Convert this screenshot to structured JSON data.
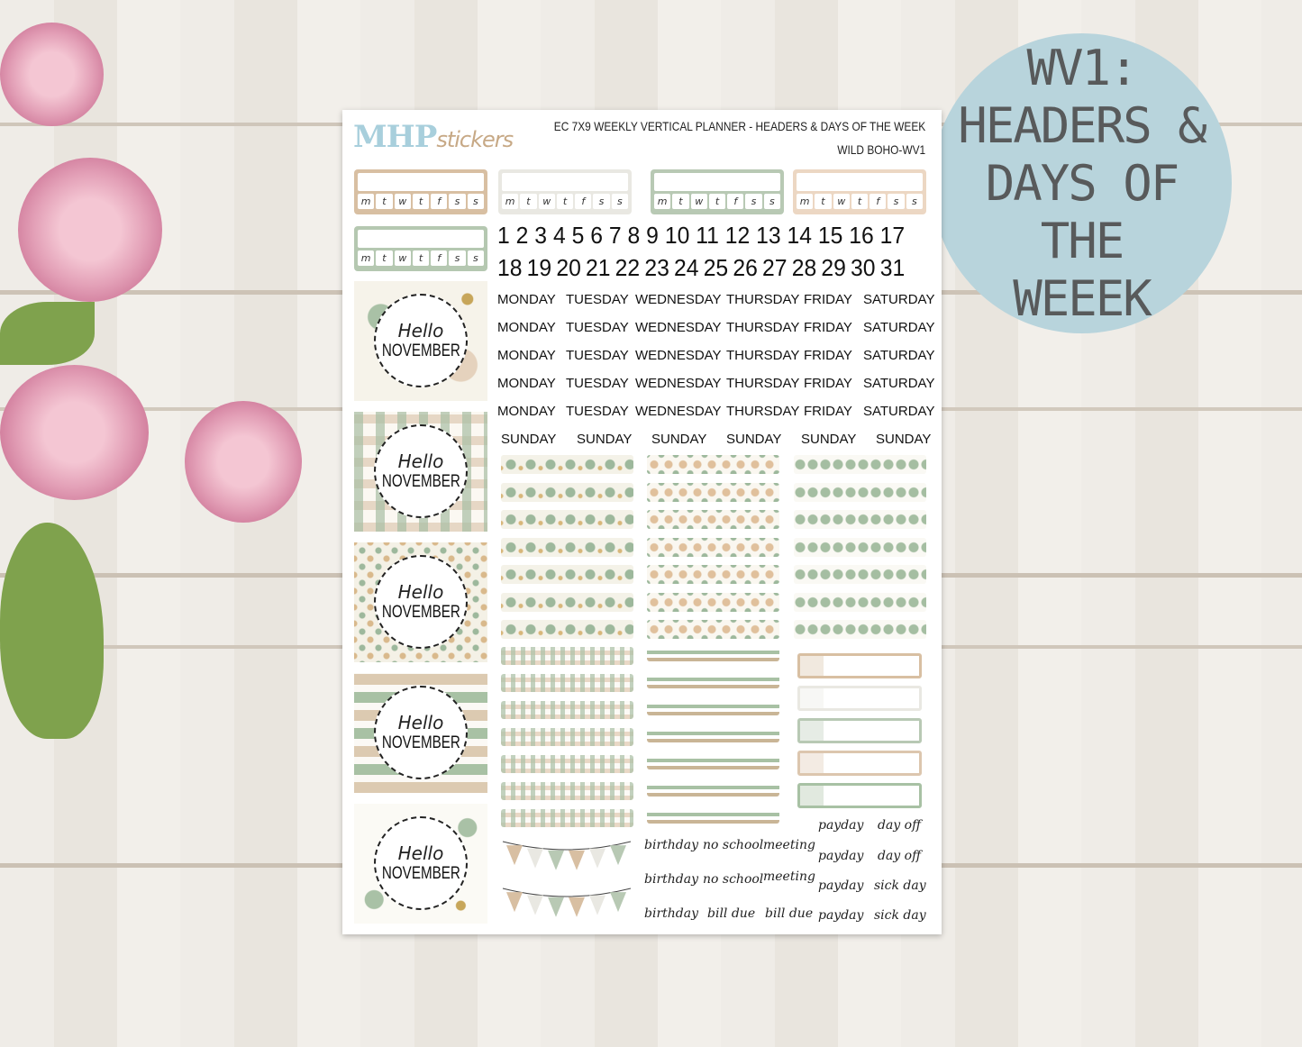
{
  "badge": {
    "lines": [
      "WV1:",
      "HEADERS &",
      "DAYS OF THE",
      "WEEEK"
    ]
  },
  "sheet": {
    "logo": {
      "brand": "MHP",
      "script": "stickers"
    },
    "title": "EC 7X9 WEEKLY VERTICAL PLANNER - HEADERS & DAYS OF THE WEEK",
    "subtitle": "WILD BOHO-WV1",
    "header_days": [
      "m",
      "t",
      "w",
      "t",
      "f",
      "s",
      "s"
    ],
    "header_colors": [
      "#d8bfa2",
      "#e9e8e2",
      "#b8c9b4",
      "#ecd7c3",
      "#b5c8b1"
    ],
    "numbers_row1": [
      "1",
      "2",
      "3",
      "4",
      "5",
      "6",
      "7",
      "8",
      "9",
      "10",
      "11",
      "12",
      "13",
      "14",
      "15",
      "16",
      "17"
    ],
    "numbers_row2": [
      "18",
      "19",
      "20",
      "21",
      "22",
      "23",
      "24",
      "25",
      "26",
      "27",
      "28",
      "29",
      "30",
      "31"
    ],
    "weekdays": [
      "MONDAY",
      "TUESDAY",
      "WEDNESDAY",
      "THURSDAY",
      "FRIDAY",
      "SATURDAY"
    ],
    "sunday": "SUNDAY",
    "hello": {
      "line1": "Hello",
      "line2": "NOVEMBER"
    },
    "words": {
      "birthday": "birthday",
      "no_school": "no school",
      "meeting": "meeting",
      "bill_due": "bill due",
      "payday": "payday",
      "day_off": "day off",
      "sick_day": "sick day"
    },
    "accent_colors": {
      "sage": "#a8c1a4",
      "tan": "#d8bfa2",
      "badge": "#b8d4dc"
    }
  }
}
